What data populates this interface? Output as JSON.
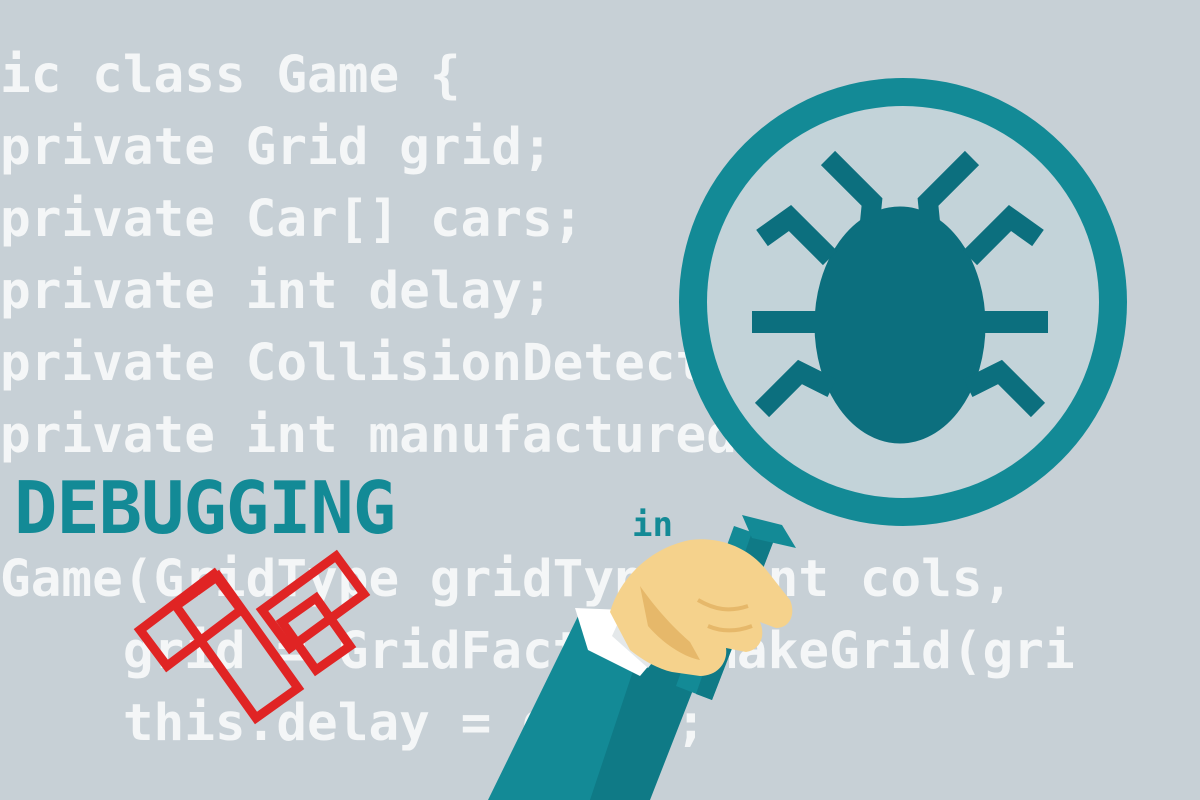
{
  "code_lines": [
    "ic class Game {",
    "private Grid grid;",
    "private Car[] cars;",
    "private int delay;",
    "private CollisionDetector collisio",
    "private int manufacturedCars = 20;",
    "Game(GridType gridType, int cols,",
    "    grid = GridFactory.makeGrid(gri",
    "    this.delay = delay;"
  ],
  "title": "DEBUGGING",
  "title_suffix": "in",
  "colors": {
    "background": "#c7d0d6",
    "code_text": "#f4f6f7",
    "accent_teal": "#138a96",
    "bug": "#0c6f7e",
    "logo_red": "#e02424",
    "skin": "#f5d28c"
  },
  "icons": [
    "magnifier-icon",
    "bug-icon",
    "hand-icon",
    "logo-mark"
  ]
}
